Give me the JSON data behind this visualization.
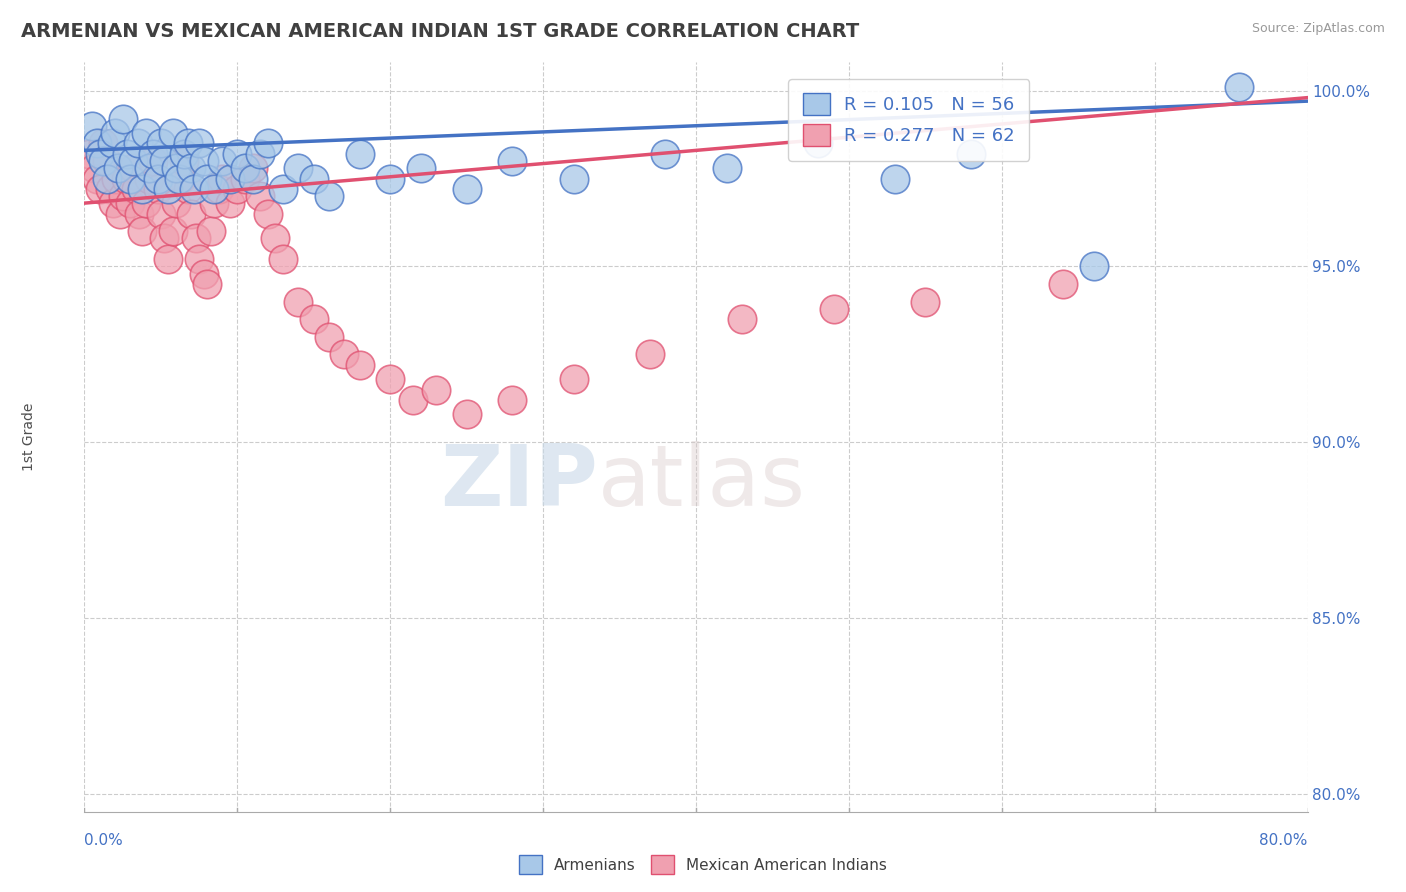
{
  "title": "ARMENIAN VS MEXICAN AMERICAN INDIAN 1ST GRADE CORRELATION CHART",
  "source": "Source: ZipAtlas.com",
  "ylabel": "1st Grade",
  "ytick_labels": [
    "100.0%",
    "95.0%",
    "90.0%",
    "85.0%",
    "80.0%"
  ],
  "ytick_values": [
    1.0,
    0.95,
    0.9,
    0.85,
    0.8
  ],
  "xlim": [
    0.0,
    0.8
  ],
  "ylim": [
    0.795,
    1.008
  ],
  "blue_R": 0.105,
  "blue_N": 56,
  "pink_R": 0.277,
  "pink_N": 62,
  "blue_color": "#A8C8E8",
  "pink_color": "#F0A0B0",
  "blue_line_color": "#4472C4",
  "pink_line_color": "#E05070",
  "legend_label_blue": "Armenians",
  "legend_label_pink": "Mexican American Indians",
  "watermark_zip": "ZIP",
  "watermark_atlas": "atlas",
  "bg_color": "#FFFFFF",
  "grid_color": "#CCCCCC",
  "title_color": "#404040",
  "axis_label_color": "#4472C4",
  "blue_scatter_x": [
    0.005,
    0.008,
    0.01,
    0.012,
    0.015,
    0.018,
    0.02,
    0.022,
    0.025,
    0.028,
    0.03,
    0.032,
    0.035,
    0.038,
    0.04,
    0.042,
    0.045,
    0.048,
    0.05,
    0.052,
    0.055,
    0.058,
    0.06,
    0.062,
    0.065,
    0.068,
    0.07,
    0.072,
    0.075,
    0.078,
    0.08,
    0.085,
    0.09,
    0.095,
    0.1,
    0.105,
    0.11,
    0.115,
    0.12,
    0.13,
    0.14,
    0.15,
    0.16,
    0.18,
    0.2,
    0.22,
    0.25,
    0.28,
    0.32,
    0.38,
    0.42,
    0.48,
    0.53,
    0.58,
    0.66,
    0.755
  ],
  "blue_scatter_y": [
    0.99,
    0.985,
    0.982,
    0.98,
    0.975,
    0.985,
    0.988,
    0.978,
    0.992,
    0.982,
    0.975,
    0.98,
    0.985,
    0.972,
    0.988,
    0.978,
    0.982,
    0.975,
    0.985,
    0.98,
    0.972,
    0.988,
    0.978,
    0.975,
    0.982,
    0.985,
    0.978,
    0.972,
    0.985,
    0.98,
    0.975,
    0.972,
    0.98,
    0.975,
    0.982,
    0.978,
    0.975,
    0.982,
    0.985,
    0.972,
    0.978,
    0.975,
    0.97,
    0.982,
    0.975,
    0.978,
    0.972,
    0.98,
    0.975,
    0.982,
    0.978,
    0.985,
    0.975,
    0.982,
    0.95,
    1.001
  ],
  "pink_scatter_x": [
    0.003,
    0.006,
    0.008,
    0.01,
    0.012,
    0.015,
    0.017,
    0.019,
    0.021,
    0.023,
    0.025,
    0.027,
    0.03,
    0.032,
    0.034,
    0.036,
    0.038,
    0.04,
    0.042,
    0.045,
    0.048,
    0.05,
    0.052,
    0.055,
    0.058,
    0.06,
    0.063,
    0.065,
    0.068,
    0.07,
    0.073,
    0.075,
    0.078,
    0.08,
    0.083,
    0.085,
    0.088,
    0.09,
    0.095,
    0.1,
    0.105,
    0.11,
    0.115,
    0.12,
    0.125,
    0.13,
    0.14,
    0.15,
    0.16,
    0.17,
    0.18,
    0.2,
    0.215,
    0.23,
    0.25,
    0.28,
    0.32,
    0.37,
    0.43,
    0.49,
    0.55,
    0.64
  ],
  "pink_scatter_y": [
    0.982,
    0.978,
    0.975,
    0.972,
    0.985,
    0.98,
    0.972,
    0.968,
    0.975,
    0.965,
    0.97,
    0.975,
    0.968,
    0.978,
    0.972,
    0.965,
    0.96,
    0.968,
    0.975,
    0.98,
    0.972,
    0.965,
    0.958,
    0.952,
    0.96,
    0.968,
    0.975,
    0.98,
    0.972,
    0.965,
    0.958,
    0.952,
    0.948,
    0.945,
    0.96,
    0.968,
    0.972,
    0.975,
    0.968,
    0.972,
    0.975,
    0.978,
    0.97,
    0.965,
    0.958,
    0.952,
    0.94,
    0.935,
    0.93,
    0.925,
    0.922,
    0.918,
    0.912,
    0.915,
    0.908,
    0.912,
    0.918,
    0.925,
    0.935,
    0.938,
    0.94,
    0.945
  ],
  "blue_trend_x": [
    0.0,
    0.8
  ],
  "blue_trend_y": [
    0.983,
    0.997
  ],
  "pink_trend_x": [
    0.0,
    0.8
  ],
  "pink_trend_y": [
    0.968,
    0.998
  ]
}
